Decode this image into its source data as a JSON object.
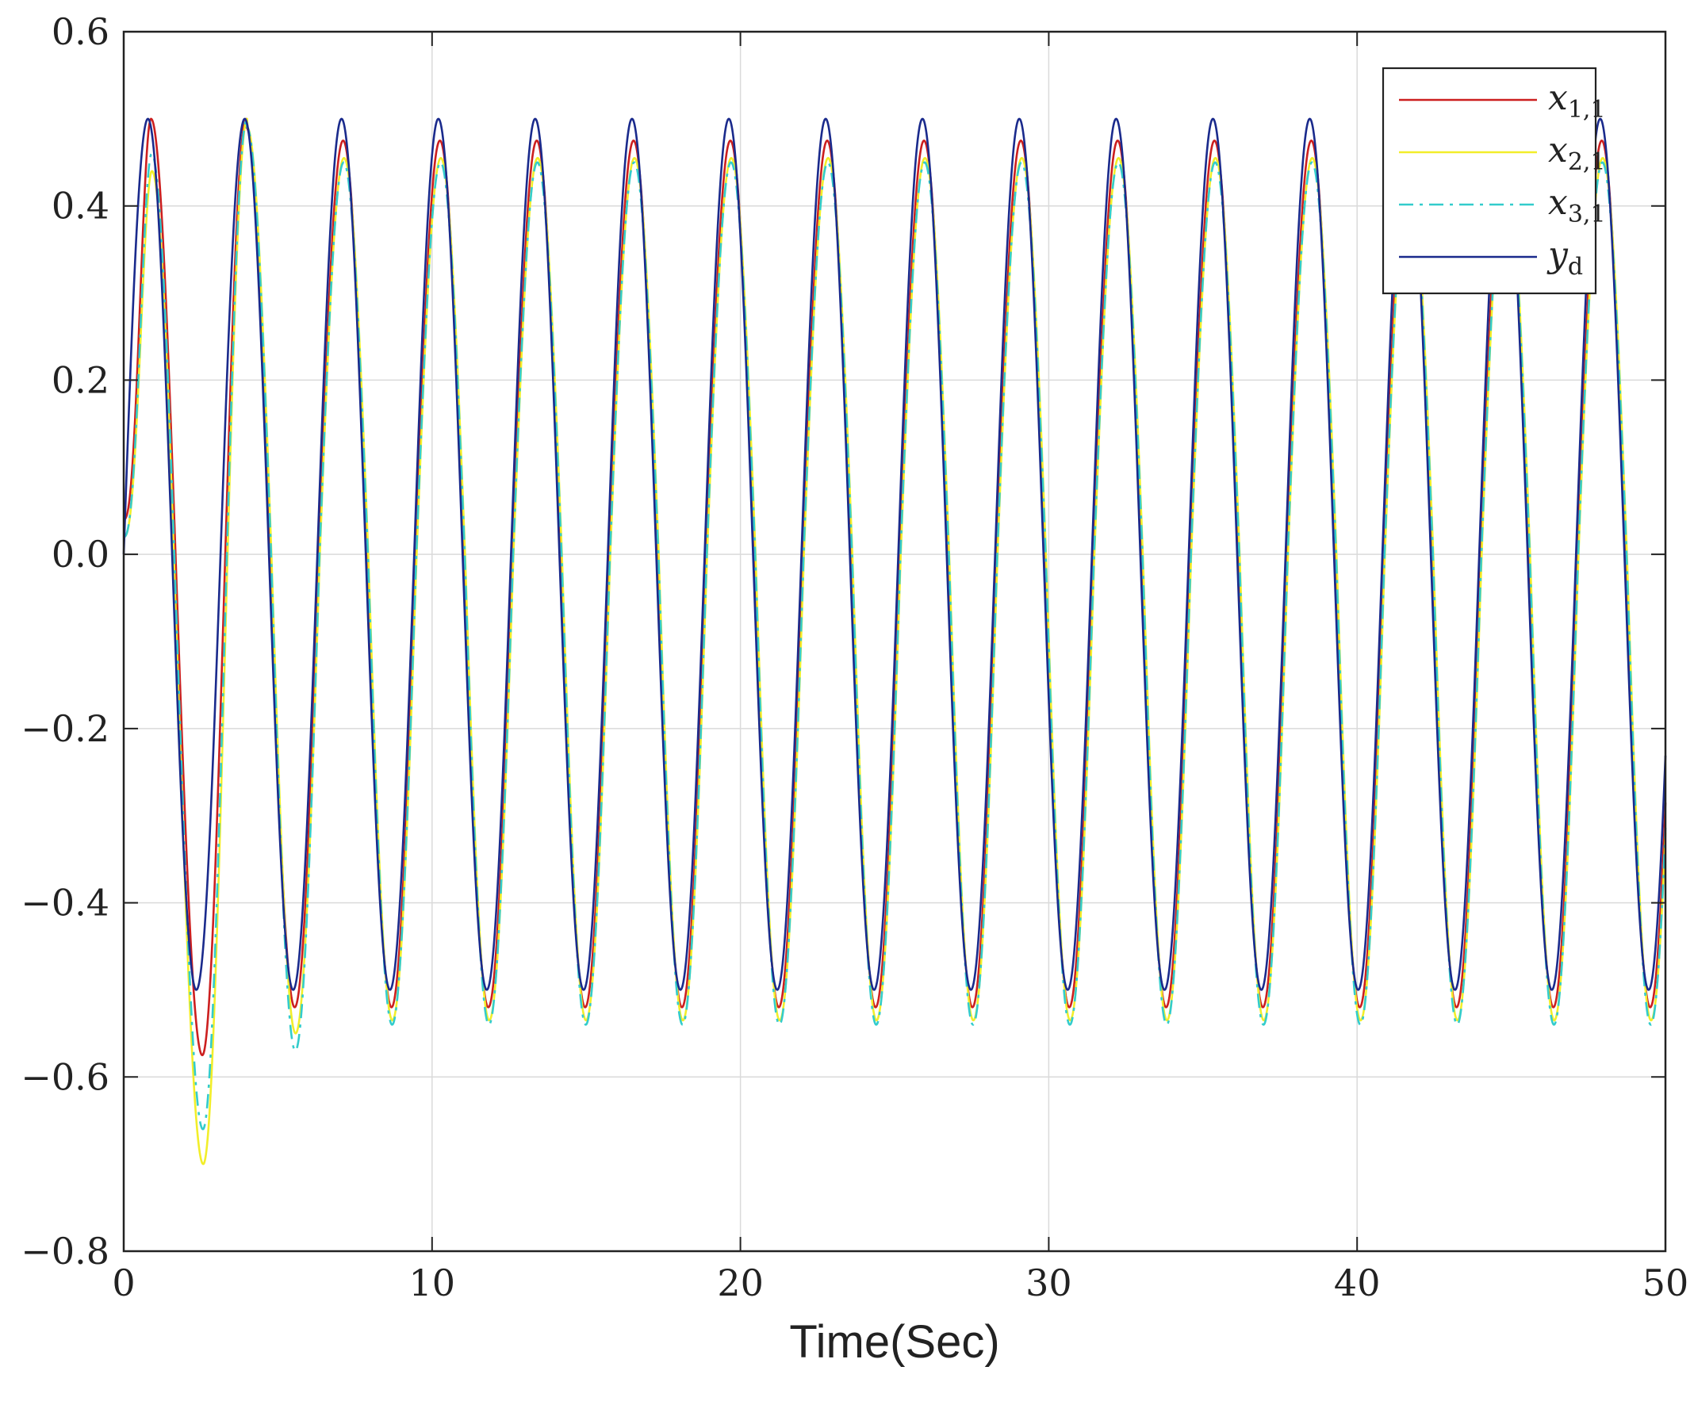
{
  "chart_data": {
    "type": "line",
    "title": "",
    "xlabel": "Time(Sec)",
    "ylabel": "",
    "xlim": [
      0,
      50
    ],
    "ylim": [
      -0.8,
      0.6
    ],
    "grid": true,
    "legend_position": "top-right",
    "x_ticks": [
      0,
      10,
      20,
      30,
      40,
      50
    ],
    "x_tick_labels": [
      "0",
      "10",
      "20",
      "30",
      "40",
      "50"
    ],
    "y_ticks": [
      0.6,
      0.4,
      0.2,
      0.0,
      -0.2,
      -0.4,
      -0.6,
      -0.8
    ],
    "y_tick_labels": [
      "0.6",
      "0.4",
      "0.2",
      "0.0",
      "−0.2",
      "−0.4",
      "−0.6",
      "−0.8"
    ],
    "signal": {
      "amplitude": 0.5,
      "period": 3.14,
      "duration": 50
    },
    "series": [
      {
        "name": "x",
        "subscript": "1,1",
        "color": "#cc1f1f",
        "dash": "solid",
        "initial_value": 0.04,
        "steady_peak": 0.475,
        "steady_trough": -0.52,
        "phase_lag": 0.05,
        "transient": {
          "first_peak": 0.5,
          "first_trough": -0.575,
          "second_trough": -0.52
        }
      },
      {
        "name": "x",
        "subscript": "2,1",
        "color": "#f2ee2a",
        "dash": "solid",
        "initial_value": 0.02,
        "steady_peak": 0.455,
        "steady_trough": -0.535,
        "phase_lag": 0.08,
        "transient": {
          "first_peak": 0.44,
          "first_trough": -0.7,
          "second_trough": -0.55
        }
      },
      {
        "name": "x",
        "subscript": "3,1",
        "color": "#33cccc",
        "dash": "dashdot",
        "initial_value": 0.02,
        "steady_peak": 0.45,
        "steady_trough": -0.54,
        "phase_lag": 0.07,
        "transient": {
          "first_peak": 0.46,
          "first_trough": -0.66,
          "second_trough": -0.57
        }
      },
      {
        "name": "y",
        "subscript": "d",
        "color": "#1a2a8c",
        "dash": "solid",
        "initial_value": 0.0,
        "steady_peak": 0.5,
        "steady_trough": -0.5,
        "phase_lag": 0.0,
        "transient": null
      }
    ]
  }
}
